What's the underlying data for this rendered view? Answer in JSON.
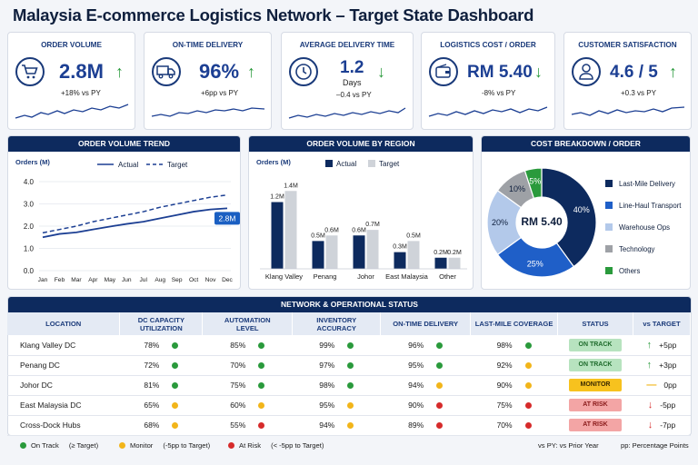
{
  "title": "Malaysia E-commerce Logistics Network – Target State Dashboard",
  "kpis": [
    {
      "label": "ORDER VOLUME",
      "icon": "cart-icon",
      "value": "2.8M",
      "unit": "",
      "sub": "+18% vs PY",
      "trend": "up",
      "trend_color": "#2a9a3c"
    },
    {
      "label": "ON-TIME DELIVERY",
      "icon": "truck-icon",
      "value": "96%",
      "unit": "",
      "sub": "+6pp vs PY",
      "trend": "up",
      "trend_color": "#2a9a3c"
    },
    {
      "label": "AVERAGE DELIVERY TIME",
      "icon": "clock-icon",
      "value": "1.2",
      "unit": "Days",
      "sub": "–0.4 vs PY",
      "trend": "down",
      "trend_color": "#2a9a3c"
    },
    {
      "label": "LOGISTICS COST / ORDER",
      "icon": "wallet-icon",
      "value": "RM 5.40",
      "unit": "",
      "sub": "-8% vs PY",
      "trend": "down",
      "trend_color": "#2a9a3c"
    },
    {
      "label": "CUSTOMER SATISFACTION",
      "icon": "user-icon",
      "value": "4.6 / 5",
      "unit": "",
      "sub": "+0.3 vs PY",
      "trend": "up",
      "trend_color": "#2a9a3c"
    }
  ],
  "panels": {
    "trend": "ORDER VOLUME TREND",
    "region": "ORDER VOLUME BY REGION",
    "cost": "COST BREAKDOWN / ORDER",
    "network": "NETWORK & OPERATIONAL STATUS"
  },
  "chart_data": [
    {
      "type": "line",
      "ylabel": "Orders (M)",
      "x": [
        "Jan",
        "Feb",
        "Mar",
        "Apr",
        "May",
        "Jun",
        "Jul",
        "Aug",
        "Sep",
        "Oct",
        "Nov",
        "Dec"
      ],
      "series": [
        {
          "name": "Actual",
          "values": [
            1.5,
            1.65,
            1.72,
            1.85,
            1.98,
            2.1,
            2.2,
            2.35,
            2.5,
            2.65,
            2.75,
            2.8
          ]
        },
        {
          "name": "Target",
          "values": [
            1.7,
            1.85,
            2.0,
            2.2,
            2.35,
            2.5,
            2.65,
            2.85,
            3.0,
            3.15,
            3.3,
            3.4
          ]
        }
      ],
      "ylim": [
        0,
        4
      ],
      "yticks": [
        "0.0",
        "1.0",
        "2.0",
        "3.0",
        "4.0"
      ],
      "annotation": "2.8M",
      "colors": {
        "actual": "#1c3f93",
        "target": "#1c3f93",
        "badge": "#1a5fc2"
      }
    },
    {
      "type": "bar",
      "ylabel": "Orders (M)",
      "categories": [
        "Klang Valley",
        "Penang",
        "Johor",
        "East Malaysia",
        "Other"
      ],
      "series": [
        {
          "name": "Actual",
          "values": [
            1.2,
            0.5,
            0.6,
            0.3,
            0.2
          ],
          "labels": [
            "1.2M",
            "0.5M",
            "0.6M",
            "0.3M",
            "0.2M"
          ]
        },
        {
          "name": "Target",
          "values": [
            1.4,
            0.6,
            0.7,
            0.5,
            0.2
          ],
          "labels": [
            "1.4M",
            "0.6M",
            "0.7M",
            "0.5M",
            "0.2M"
          ]
        }
      ],
      "ylim": [
        0,
        1.6
      ],
      "colors": {
        "actual": "#0d2a5e",
        "target": "#cfd3d9"
      }
    },
    {
      "type": "pie",
      "center_label": "RM 5.40",
      "slices": [
        {
          "name": "Last-Mile Delivery",
          "value": 40,
          "label": "40%",
          "color": "#0d2a5e"
        },
        {
          "name": "Line-Haul Transport",
          "value": 25,
          "label": "25%",
          "color": "#1f5fc8"
        },
        {
          "name": "Warehouse Ops",
          "value": 20,
          "label": "20%",
          "color": "#b3c9ea"
        },
        {
          "name": "Technology",
          "value": 10,
          "label": "10%",
          "color": "#9ea1a6"
        },
        {
          "name": "Others",
          "value": 5,
          "label": "5%",
          "color": "#2a9a3c"
        }
      ]
    }
  ],
  "network": {
    "headers": [
      "LOCATION",
      "DC CAPACITY\nUTILIZATION",
      "AUTOMATION\nLEVEL",
      "INVENTORY\nACCURACY",
      "ON-TIME DELIVERY",
      "LAST-MILE COVERAGE",
      "STATUS",
      "vs TARGET"
    ],
    "rows": [
      {
        "location": "Klang Valley DC",
        "cap": "78%",
        "cap_s": "g",
        "auto": "85%",
        "auto_s": "g",
        "inv": "99%",
        "inv_s": "g",
        "otd": "96%",
        "otd_s": "g",
        "lm": "98%",
        "lm_s": "g",
        "status": "ON TRACK",
        "status_s": "g",
        "vs": "+5pp",
        "vs_dir": "up"
      },
      {
        "location": "Penang DC",
        "cap": "72%",
        "cap_s": "g",
        "auto": "70%",
        "auto_s": "g",
        "inv": "97%",
        "inv_s": "g",
        "otd": "95%",
        "otd_s": "g",
        "lm": "92%",
        "lm_s": "y",
        "status": "ON TRACK",
        "status_s": "g",
        "vs": "+3pp",
        "vs_dir": "up"
      },
      {
        "location": "Johor DC",
        "cap": "81%",
        "cap_s": "g",
        "auto": "75%",
        "auto_s": "g",
        "inv": "98%",
        "inv_s": "g",
        "otd": "94%",
        "otd_s": "y",
        "lm": "90%",
        "lm_s": "y",
        "status": "MONITOR",
        "status_s": "y",
        "vs": "0pp",
        "vs_dir": "flat"
      },
      {
        "location": "East Malaysia DC",
        "cap": "65%",
        "cap_s": "y",
        "auto": "60%",
        "auto_s": "y",
        "inv": "95%",
        "inv_s": "y",
        "otd": "90%",
        "otd_s": "r",
        "lm": "75%",
        "lm_s": "r",
        "status": "AT RISK",
        "status_s": "r",
        "vs": "-5pp",
        "vs_dir": "down"
      },
      {
        "location": "Cross-Dock Hubs",
        "cap": "68%",
        "cap_s": "y",
        "auto": "55%",
        "auto_s": "r",
        "inv": "94%",
        "inv_s": "y",
        "otd": "89%",
        "otd_s": "r",
        "lm": "70%",
        "lm_s": "r",
        "status": "AT RISK",
        "status_s": "r",
        "vs": "-7pp",
        "vs_dir": "down"
      }
    ]
  },
  "legend": {
    "on_track": "On Track",
    "on_track_note": "(≥ Target)",
    "monitor": "Monitor",
    "monitor_note": "(-5pp to Target)",
    "at_risk": "At Risk",
    "at_risk_note": "(< -5pp to Target)",
    "py_note": "vs PY: vs Prior Year",
    "pp_note": "pp: Percentage Points"
  },
  "colors": {
    "green": "#2a9a3c",
    "yellow": "#f2b51a",
    "red": "#d62b2b",
    "navy": "#0d2a5e"
  }
}
